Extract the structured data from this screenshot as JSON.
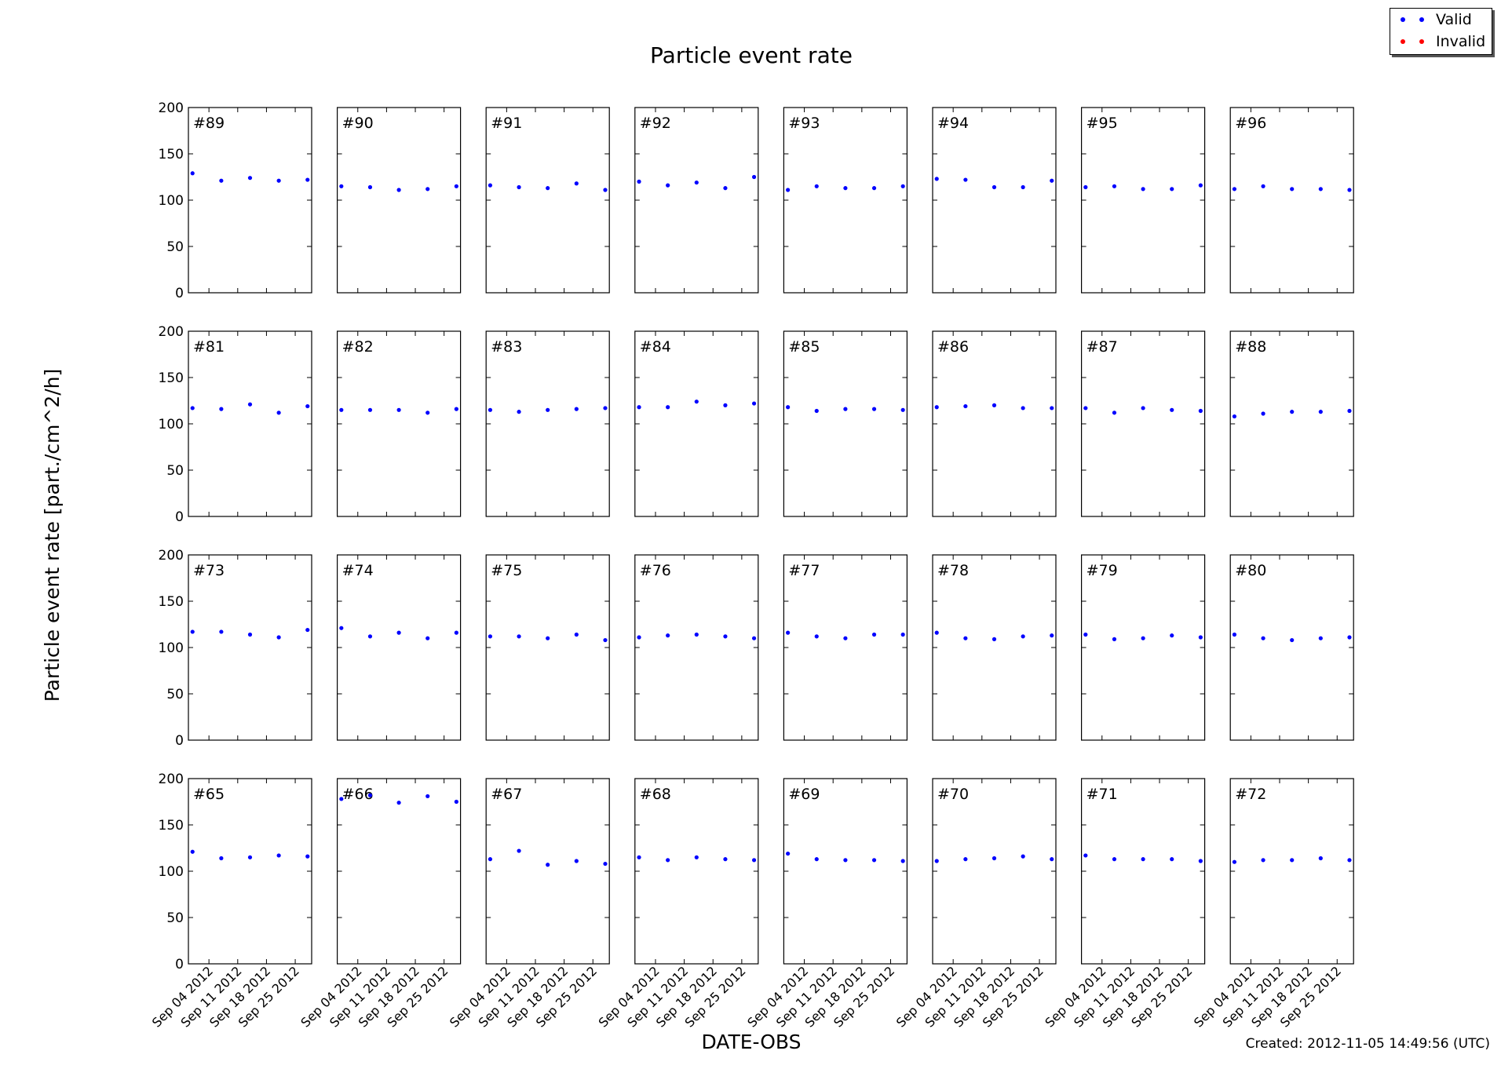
{
  "chart_data": {
    "type": "scatter",
    "title": "Particle event rate",
    "xlabel": "DATE-OBS",
    "ylabel": "Particle event rate [part./cm^2/h]",
    "ylim": [
      0,
      200
    ],
    "yticks": [
      0,
      50,
      100,
      150,
      200
    ],
    "xlim": [
      "2012-08-30",
      "2012-09-29"
    ],
    "xticks": [
      "2012-09-04",
      "2012-09-11",
      "2012-09-18",
      "2012-09-25"
    ],
    "xtick_labels": [
      "Sep 04 2012",
      "Sep 11 2012",
      "Sep 18 2012",
      "Sep 25 2012"
    ],
    "x": [
      "2012-08-31",
      "2012-09-07",
      "2012-09-14",
      "2012-09-21",
      "2012-09-28"
    ],
    "grid": false,
    "legend_position": "top-right",
    "legend": [
      {
        "name": "Valid",
        "color": "#0000ff"
      },
      {
        "name": "Invalid",
        "color": "#ff0000"
      }
    ],
    "panels": [
      {
        "label": "#89",
        "values": [
          129,
          121,
          124,
          121,
          122
        ]
      },
      {
        "label": "#90",
        "values": [
          115,
          114,
          111,
          112,
          115
        ]
      },
      {
        "label": "#91",
        "values": [
          116,
          114,
          113,
          118,
          111
        ]
      },
      {
        "label": "#92",
        "values": [
          120,
          116,
          119,
          113,
          125
        ]
      },
      {
        "label": "#93",
        "values": [
          111,
          115,
          113,
          113,
          115
        ]
      },
      {
        "label": "#94",
        "values": [
          123,
          122,
          114,
          114,
          121
        ]
      },
      {
        "label": "#95",
        "values": [
          114,
          115,
          112,
          112,
          116
        ]
      },
      {
        "label": "#96",
        "values": [
          112,
          115,
          112,
          112,
          111
        ]
      },
      {
        "label": "#81",
        "values": [
          117,
          116,
          121,
          112,
          119
        ]
      },
      {
        "label": "#82",
        "values": [
          115,
          115,
          115,
          112,
          116
        ]
      },
      {
        "label": "#83",
        "values": [
          115,
          113,
          115,
          116,
          117
        ]
      },
      {
        "label": "#84",
        "values": [
          118,
          118,
          124,
          120,
          122
        ]
      },
      {
        "label": "#85",
        "values": [
          118,
          114,
          116,
          116,
          115
        ]
      },
      {
        "label": "#86",
        "values": [
          118,
          119,
          120,
          117,
          117
        ]
      },
      {
        "label": "#87",
        "values": [
          117,
          112,
          117,
          115,
          114
        ]
      },
      {
        "label": "#88",
        "values": [
          108,
          111,
          113,
          113,
          114
        ]
      },
      {
        "label": "#73",
        "values": [
          117,
          117,
          114,
          111,
          119
        ]
      },
      {
        "label": "#74",
        "values": [
          121,
          112,
          116,
          110,
          116
        ]
      },
      {
        "label": "#75",
        "values": [
          112,
          112,
          110,
          114,
          108
        ]
      },
      {
        "label": "#76",
        "values": [
          111,
          113,
          114,
          112,
          110
        ]
      },
      {
        "label": "#77",
        "values": [
          116,
          112,
          110,
          114,
          114
        ]
      },
      {
        "label": "#78",
        "values": [
          116,
          110,
          109,
          112,
          113
        ]
      },
      {
        "label": "#79",
        "values": [
          114,
          109,
          110,
          113,
          111
        ]
      },
      {
        "label": "#80",
        "values": [
          114,
          110,
          108,
          110,
          111
        ]
      },
      {
        "label": "#65",
        "values": [
          121,
          114,
          115,
          117,
          116
        ]
      },
      {
        "label": "#66",
        "values": [
          178,
          182,
          174,
          181,
          175
        ]
      },
      {
        "label": "#67",
        "values": [
          113,
          122,
          107,
          111,
          108
        ]
      },
      {
        "label": "#68",
        "values": [
          115,
          112,
          115,
          113,
          112
        ]
      },
      {
        "label": "#69",
        "values": [
          119,
          113,
          112,
          112,
          111
        ]
      },
      {
        "label": "#70",
        "values": [
          111,
          113,
          114,
          116,
          113
        ]
      },
      {
        "label": "#71",
        "values": [
          117,
          113,
          113,
          113,
          111
        ]
      },
      {
        "label": "#72",
        "values": [
          110,
          112,
          112,
          114,
          112
        ]
      }
    ]
  },
  "footer": {
    "created": "Created: 2012-11-05 14:49:56 (UTC)"
  }
}
